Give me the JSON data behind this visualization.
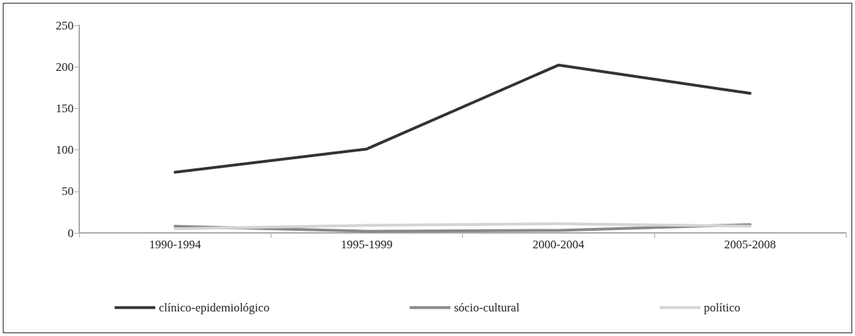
{
  "chart_data": {
    "type": "line",
    "categories": [
      "1990-1994",
      "1995-1999",
      "2000-2004",
      "2005-2008"
    ],
    "series": [
      {
        "name": "clínico-epidemiológico",
        "color": "#333333",
        "values": [
          73,
          101,
          202,
          168
        ]
      },
      {
        "name": "sócio-cultural",
        "color": "#888888",
        "values": [
          8,
          2,
          3,
          10
        ]
      },
      {
        "name": "político",
        "color": "#d4d4d4",
        "values": [
          5,
          9,
          11,
          8
        ]
      }
    ],
    "ylim": [
      0,
      250
    ],
    "yticks": [
      0,
      50,
      100,
      150,
      200,
      250
    ],
    "grid": false,
    "legend": "bottom",
    "marker": "none",
    "line_style": "solid"
  }
}
